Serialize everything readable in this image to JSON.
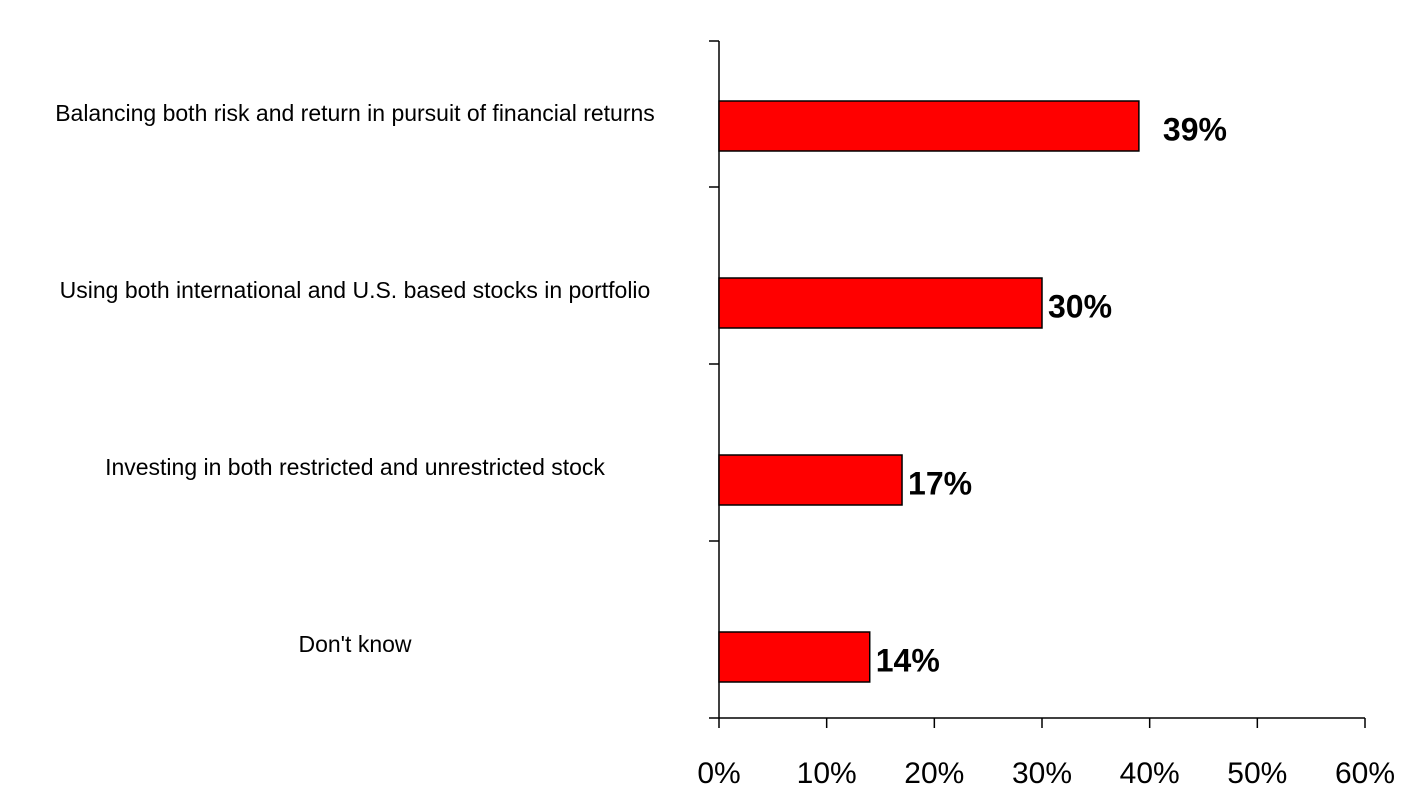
{
  "chart_data": {
    "type": "bar",
    "orientation": "horizontal",
    "categories": [
      "Balancing both risk and return in pursuit of financial returns",
      "Using both international and U.S. based stocks in portfolio",
      "Investing in both restricted and unrestricted stock",
      "Don't know"
    ],
    "values": [
      39,
      30,
      17,
      14
    ],
    "value_labels": [
      "39%",
      "30%",
      "17%",
      "14%"
    ],
    "color": "#ff0000",
    "xlim": [
      0,
      60
    ],
    "xticks": [
      {
        "value": 0,
        "label": "0%"
      },
      {
        "value": 10,
        "label": "10%"
      },
      {
        "value": 20,
        "label": "20%"
      },
      {
        "value": 30,
        "label": "30%"
      },
      {
        "value": 40,
        "label": "40%"
      },
      {
        "value": 50,
        "label": "50%"
      },
      {
        "value": 60,
        "label": "60%"
      }
    ],
    "grid": false
  }
}
